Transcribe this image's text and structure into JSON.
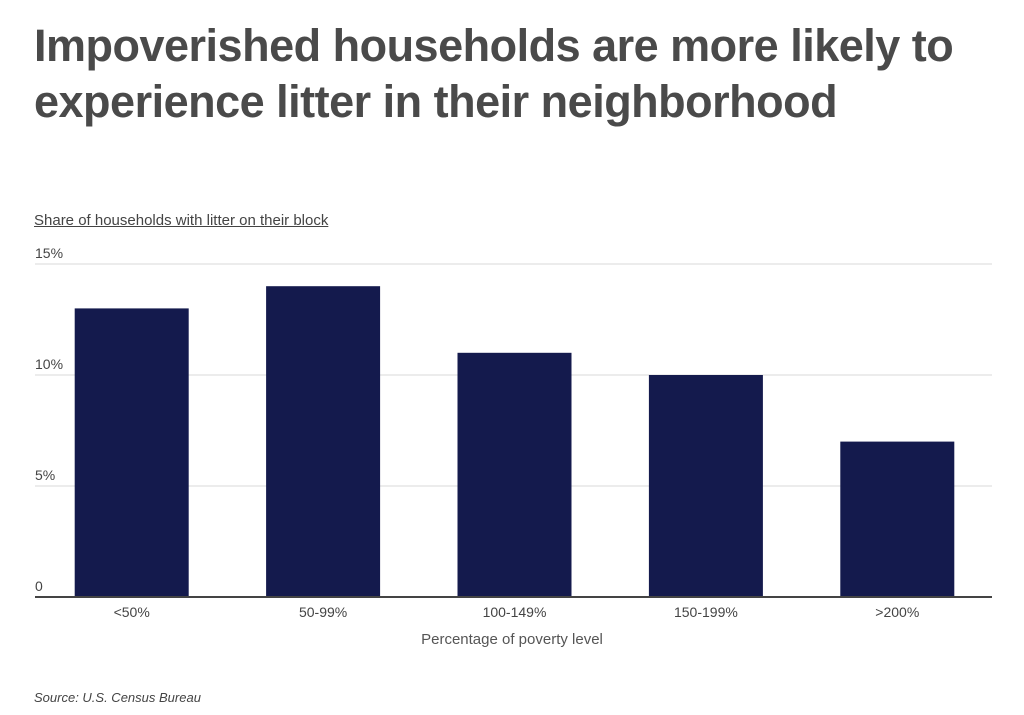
{
  "chart_data": {
    "type": "bar",
    "title": "Impoverished households are more likely to experience litter in their neighborhood",
    "ylabel": "Share of households with litter on their block",
    "xlabel": "Percentage of poverty level",
    "categories": [
      "<50%",
      "50-99%",
      "100-149%",
      "150-199%",
      ">200%"
    ],
    "values": [
      13,
      14,
      11,
      10,
      7
    ],
    "ylim": [
      0,
      15
    ],
    "yticks": [
      0,
      5,
      10,
      15
    ],
    "ytick_labels": [
      "0",
      "5%",
      "10%",
      "15%"
    ],
    "grid": true,
    "bar_color": "#141a4d",
    "source": "Source:  U.S. Census Bureau"
  }
}
